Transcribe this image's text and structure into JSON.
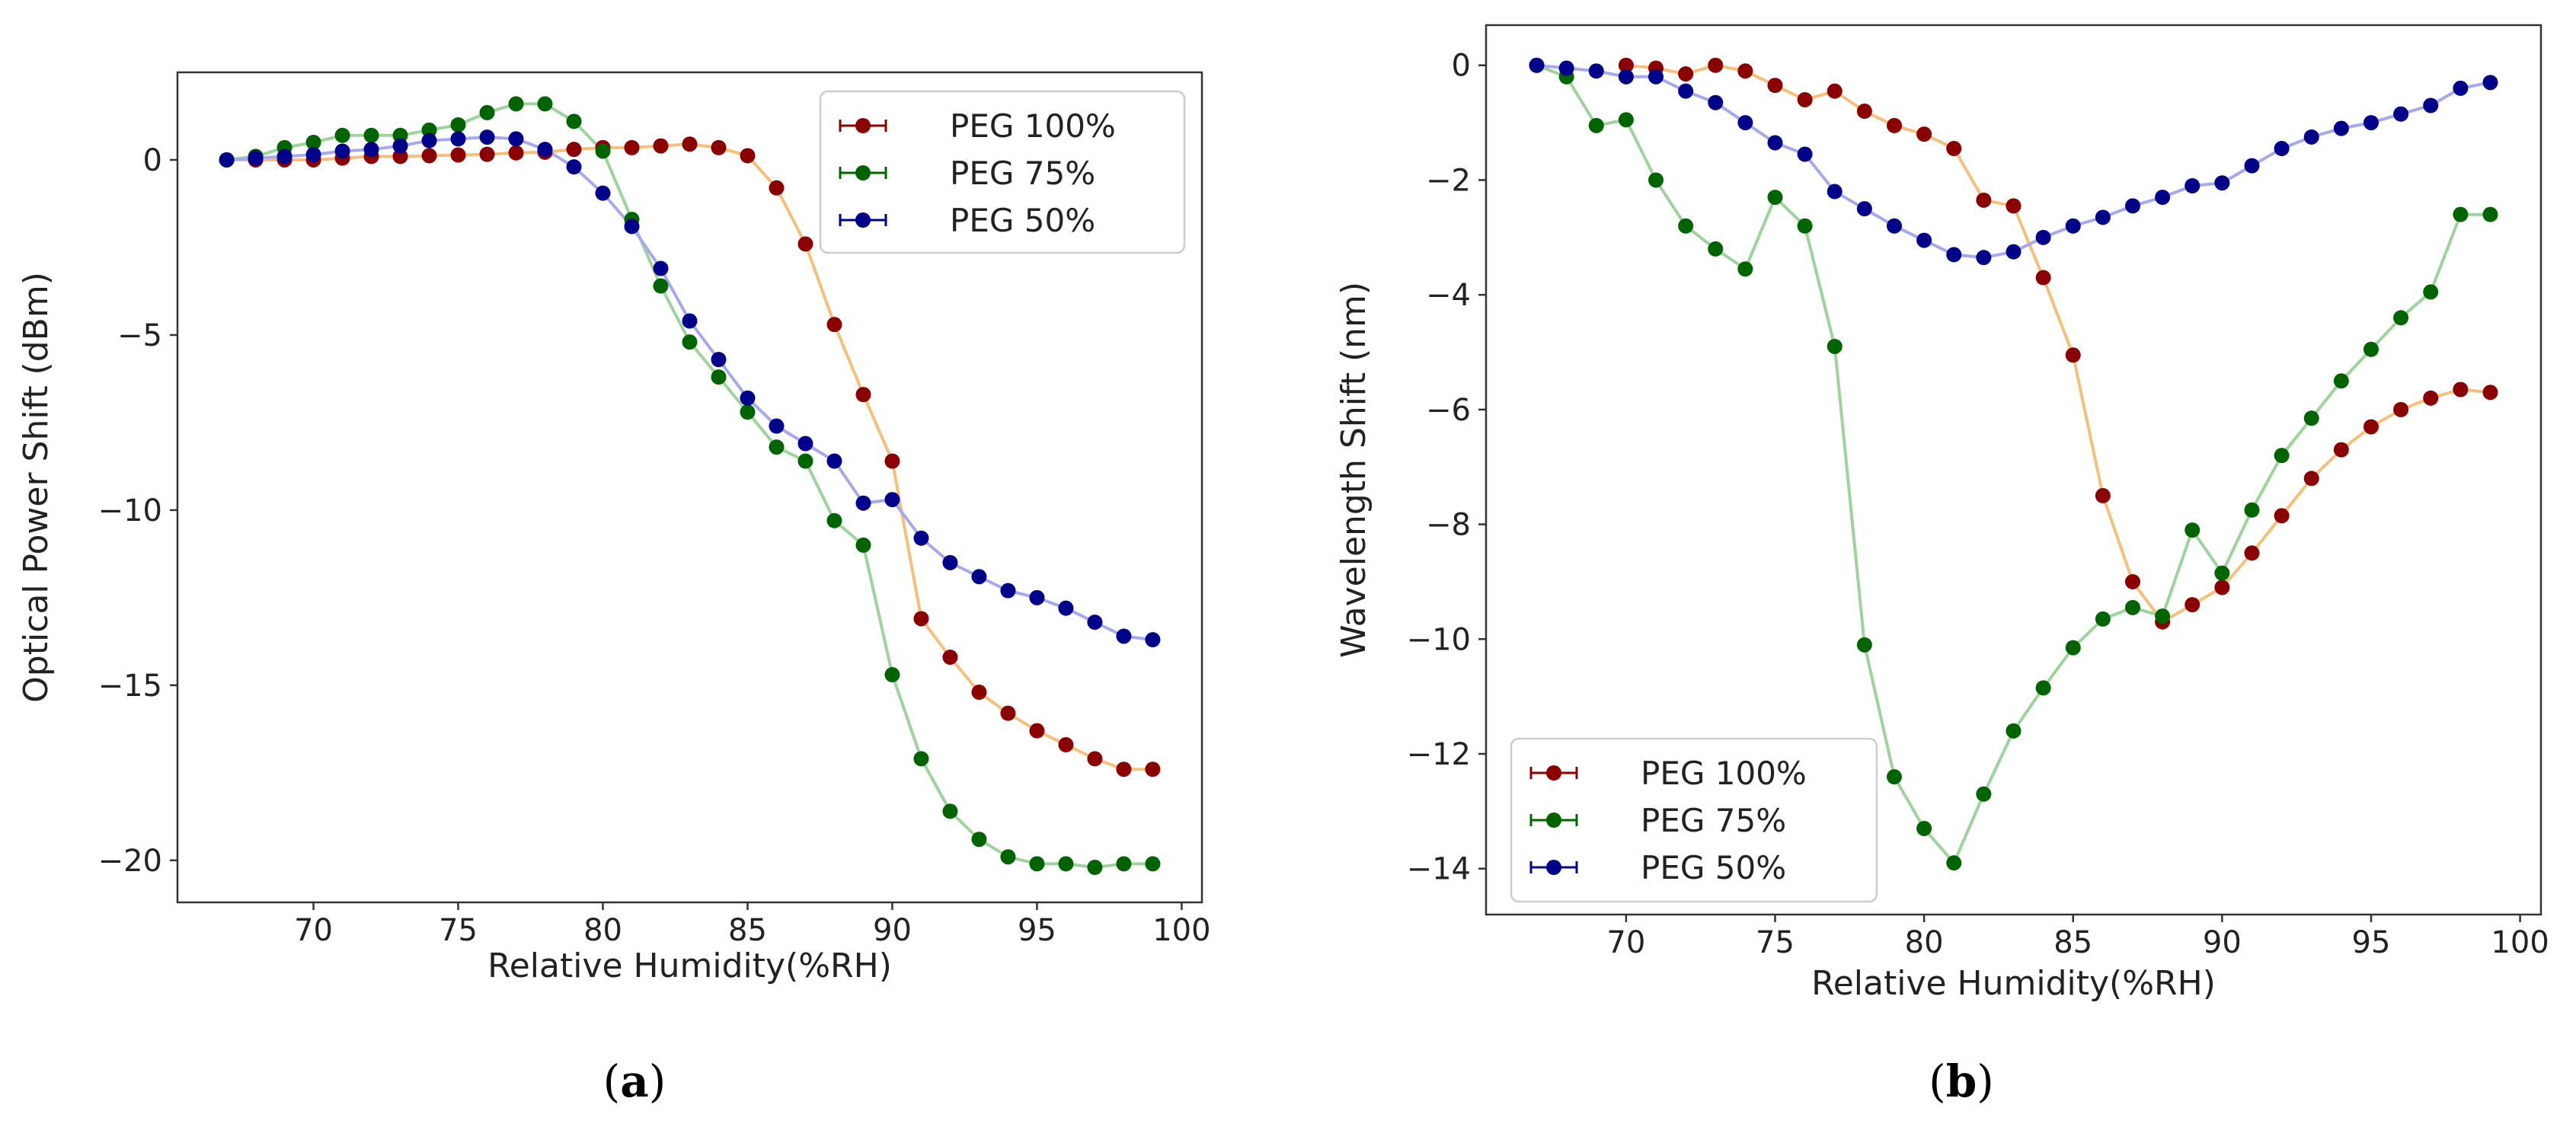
{
  "chart_data": [
    {
      "type": "line",
      "caption": "(a)",
      "caption_letter": "a",
      "xlabel": "Relative Humidity(%RH)",
      "ylabel": "Optical Power Shift (dBm)",
      "xlim": [
        65.3,
        100.7
      ],
      "ylim": [
        -21.2,
        2.5
      ],
      "xticks": [
        70,
        75,
        80,
        85,
        90,
        95,
        100
      ],
      "xtick_labels": [
        "70",
        "75",
        "80",
        "85",
        "90",
        "95",
        "100"
      ],
      "yticks": [
        0,
        -5,
        -10,
        -15,
        -20
      ],
      "ytick_labels": [
        "0",
        "−5",
        "−10",
        "−15",
        "−20"
      ],
      "legend_position": "top-right",
      "series": [
        {
          "name": "PEG 100%",
          "color": "#8b0000",
          "line_color": "#f5c07a",
          "x": [
            67,
            68,
            69,
            70,
            71,
            72,
            73,
            74,
            75,
            76,
            77,
            78,
            79,
            80,
            81,
            82,
            83,
            84,
            85,
            86,
            87,
            88,
            89,
            90,
            91,
            92,
            93,
            94,
            95,
            96,
            97,
            98,
            99
          ],
          "y": [
            0,
            0,
            0,
            0,
            0.05,
            0.1,
            0.1,
            0.12,
            0.14,
            0.16,
            0.2,
            0.22,
            0.3,
            0.35,
            0.35,
            0.4,
            0.45,
            0.35,
            0.12,
            -0.8,
            -2.4,
            -4.7,
            -6.7,
            -8.6,
            -13.1,
            -14.2,
            -15.2,
            -15.8,
            -16.3,
            -16.7,
            -17.1,
            -17.4,
            -17.4
          ]
        },
        {
          "name": "PEG 75%",
          "color": "#006400",
          "line_color": "#9ed39e",
          "x": [
            67,
            68,
            69,
            70,
            71,
            72,
            73,
            74,
            75,
            76,
            77,
            78,
            79,
            80,
            81,
            82,
            83,
            84,
            85,
            86,
            87,
            88,
            89,
            90,
            91,
            92,
            93,
            94,
            95,
            96,
            97,
            98,
            99
          ],
          "y": [
            0,
            0.1,
            0.35,
            0.5,
            0.7,
            0.7,
            0.7,
            0.85,
            1.0,
            1.35,
            1.6,
            1.6,
            1.1,
            0.25,
            -1.7,
            -3.6,
            -5.2,
            -6.2,
            -7.2,
            -8.2,
            -8.6,
            -10.3,
            -11,
            -14.7,
            -17.1,
            -18.6,
            -19.4,
            -19.9,
            -20.1,
            -20.1,
            -20.2,
            -20.1,
            -20.1
          ]
        },
        {
          "name": "PEG 50%",
          "color": "#00008b",
          "line_color": "#a8a8ec",
          "x": [
            67,
            68,
            69,
            70,
            71,
            72,
            73,
            74,
            75,
            76,
            77,
            78,
            79,
            80,
            81,
            82,
            83,
            84,
            85,
            86,
            87,
            88,
            89,
            90,
            91,
            92,
            93,
            94,
            95,
            96,
            97,
            98,
            99
          ],
          "y": [
            0,
            0.05,
            0.1,
            0.15,
            0.25,
            0.3,
            0.4,
            0.55,
            0.6,
            0.65,
            0.6,
            0.3,
            -0.2,
            -0.95,
            -1.9,
            -3.1,
            -4.6,
            -5.7,
            -6.8,
            -7.6,
            -8.1,
            -8.6,
            -9.8,
            -9.7,
            -10.8,
            -11.5,
            -11.9,
            -12.3,
            -12.5,
            -12.8,
            -13.2,
            -13.6,
            -13.7
          ]
        }
      ]
    },
    {
      "type": "line",
      "caption": "(b)",
      "caption_letter": "b",
      "xlabel": "Relative Humidity(%RH)",
      "ylabel": "Wavelength Shift (nm)",
      "xlim": [
        65.3,
        100.7
      ],
      "ylim": [
        -14.8,
        0.7
      ],
      "xticks": [
        70,
        75,
        80,
        85,
        90,
        95,
        100
      ],
      "xtick_labels": [
        "70",
        "75",
        "80",
        "85",
        "90",
        "95",
        "100"
      ],
      "yticks": [
        0,
        -2,
        -4,
        -6,
        -8,
        -10,
        -12,
        -14
      ],
      "ytick_labels": [
        "0",
        "−2",
        "−4",
        "−6",
        "−8",
        "−10",
        "−12",
        "−14"
      ],
      "legend_position": "bottom-left",
      "series": [
        {
          "name": "PEG 100%",
          "color": "#8b0000",
          "line_color": "#f5c07a",
          "x": [
            70,
            71,
            72,
            73,
            74,
            75,
            76,
            77,
            78,
            79,
            80,
            81,
            82,
            83,
            84,
            85,
            86,
            87,
            88,
            89,
            90,
            91,
            92,
            93,
            94,
            95,
            96,
            97,
            98,
            99
          ],
          "y": [
            0,
            -0.05,
            -0.15,
            0,
            -0.1,
            -0.35,
            -0.6,
            -0.45,
            -0.8,
            -1.05,
            -1.2,
            -1.45,
            -2.35,
            -2.45,
            -3.7,
            -5.05,
            -7.5,
            -9.0,
            -9.7,
            -9.4,
            -9.1,
            -8.5,
            -7.85,
            -7.2,
            -6.7,
            -6.3,
            -6.0,
            -5.8,
            -5.65,
            -5.7
          ]
        },
        {
          "name": "PEG 75%",
          "color": "#006400",
          "line_color": "#9ed39e",
          "x": [
            67,
            68,
            69,
            70,
            71,
            72,
            73,
            74,
            75,
            76,
            77,
            78,
            79,
            80,
            81,
            82,
            83,
            84,
            85,
            86,
            87,
            88,
            89,
            90,
            91,
            92,
            93,
            94,
            95,
            96,
            97,
            98,
            99
          ],
          "y": [
            0,
            -0.2,
            -1.05,
            -0.95,
            -2.0,
            -2.8,
            -3.2,
            -3.55,
            -2.3,
            -2.8,
            -4.9,
            -10.1,
            -12.4,
            -13.3,
            -13.9,
            -12.7,
            -11.6,
            -10.85,
            -10.15,
            -9.65,
            -9.45,
            -9.6,
            -8.1,
            -8.85,
            -7.75,
            -6.8,
            -6.15,
            -5.5,
            -4.95,
            -4.4,
            -3.95,
            -2.6,
            -2.6
          ]
        },
        {
          "name": "PEG 50%",
          "color": "#00008b",
          "line_color": "#a8a8ec",
          "x": [
            67,
            68,
            69,
            70,
            71,
            72,
            73,
            74,
            75,
            76,
            77,
            78,
            79,
            80,
            81,
            82,
            83,
            84,
            85,
            86,
            87,
            88,
            89,
            90,
            91,
            92,
            93,
            94,
            95,
            96,
            97,
            98,
            99
          ],
          "y": [
            0,
            -0.05,
            -0.1,
            -0.2,
            -0.2,
            -0.45,
            -0.65,
            -1.0,
            -1.35,
            -1.55,
            -2.2,
            -2.5,
            -2.8,
            -3.05,
            -3.3,
            -3.35,
            -3.25,
            -3.0,
            -2.8,
            -2.65,
            -2.45,
            -2.3,
            -2.1,
            -2.05,
            -1.75,
            -1.45,
            -1.25,
            -1.1,
            -1.0,
            -0.85,
            -0.7,
            -0.4,
            -0.3
          ]
        }
      ]
    }
  ]
}
